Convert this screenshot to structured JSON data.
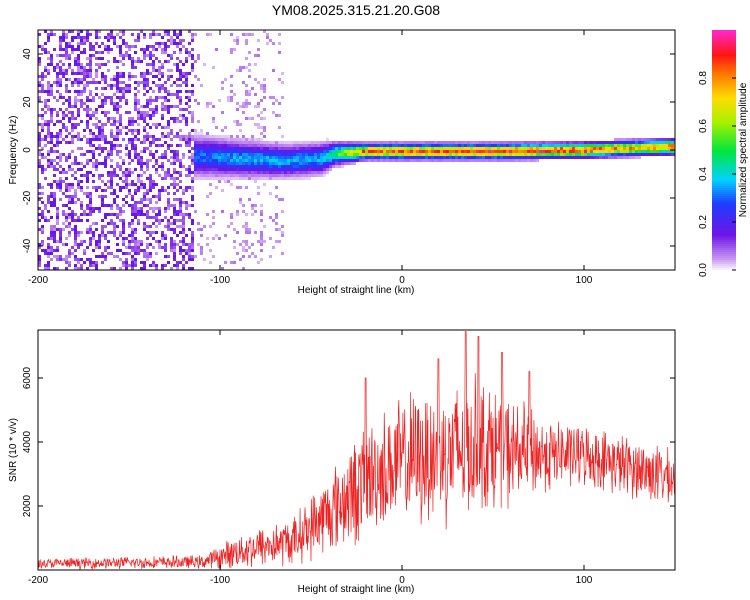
{
  "title": "YM08.2025.315.21.20.G08",
  "colors": {
    "snr_line": "#ee2222",
    "ridge": "#ff2a2a"
  },
  "chart_data": [
    {
      "type": "heatmap",
      "name": "spectrogram",
      "xlabel": "Height of straight line (km)",
      "ylabel": "Frequency (Hz)",
      "xlim": [
        -200,
        150
      ],
      "ylim": [
        -50,
        50
      ],
      "x_ticks": [
        -200,
        -100,
        0,
        100
      ],
      "y_ticks": [
        -40,
        -20,
        0,
        20,
        40
      ],
      "noise_region_x": [
        -200,
        -115
      ],
      "sparse_region_x": [
        -115,
        -65
      ],
      "signal_band": [
        {
          "x": -115,
          "freq": -2,
          "width": 10,
          "amp": 0.35
        },
        {
          "x": -90,
          "freq": -3,
          "width": 9,
          "amp": 0.4
        },
        {
          "x": -65,
          "freq": -4,
          "width": 8,
          "amp": 0.42
        },
        {
          "x": -45,
          "freq": -3,
          "width": 8,
          "amp": 0.4
        },
        {
          "x": -38,
          "freq": -1,
          "width": 6,
          "amp": 0.55
        },
        {
          "x": -20,
          "freq": 0,
          "width": 4,
          "amp": 0.95
        },
        {
          "x": 0,
          "freq": 0,
          "width": 4,
          "amp": 1.0
        },
        {
          "x": 50,
          "freq": 0,
          "width": 4,
          "amp": 1.0
        },
        {
          "x": 100,
          "freq": 0.5,
          "width": 4,
          "amp": 1.0
        },
        {
          "x": 130,
          "freq": 1.5,
          "width": 4,
          "amp": 0.85
        },
        {
          "x": 150,
          "freq": 2,
          "width": 4,
          "amp": 0.95
        }
      ],
      "colorbar": {
        "label": "Normalized spectral amplitude",
        "range": [
          0,
          1
        ],
        "ticks": [
          0.0,
          0.2,
          0.4,
          0.6,
          0.8
        ]
      }
    },
    {
      "type": "line",
      "name": "snr",
      "xlabel": "Height of straight line (km)",
      "ylabel": "SNR (10 * v/v)",
      "xlim": [
        -200,
        150
      ],
      "ylim": [
        0,
        7500
      ],
      "x_ticks": [
        -200,
        -100,
        0,
        100
      ],
      "y_ticks": [
        2000,
        4000,
        6000
      ],
      "envelope": [
        {
          "x": -200,
          "mean": 200,
          "spread": 150
        },
        {
          "x": -110,
          "mean": 250,
          "spread": 200
        },
        {
          "x": -100,
          "mean": 400,
          "spread": 350
        },
        {
          "x": -90,
          "mean": 600,
          "spread": 500
        },
        {
          "x": -80,
          "mean": 700,
          "spread": 600
        },
        {
          "x": -60,
          "mean": 900,
          "spread": 700
        },
        {
          "x": -40,
          "mean": 1800,
          "spread": 1200
        },
        {
          "x": -25,
          "mean": 2500,
          "spread": 1600
        },
        {
          "x": -15,
          "mean": 3000,
          "spread": 1700
        },
        {
          "x": 0,
          "mean": 3400,
          "spread": 1900
        },
        {
          "x": 20,
          "mean": 3600,
          "spread": 2100
        },
        {
          "x": 40,
          "mean": 3900,
          "spread": 2100
        },
        {
          "x": 60,
          "mean": 3700,
          "spread": 1600
        },
        {
          "x": 80,
          "mean": 3600,
          "spread": 1100
        },
        {
          "x": 100,
          "mean": 3600,
          "spread": 900
        },
        {
          "x": 120,
          "mean": 3300,
          "spread": 900
        },
        {
          "x": 140,
          "mean": 3000,
          "spread": 900
        },
        {
          "x": 150,
          "mean": 2800,
          "spread": 800
        }
      ],
      "spikes": [
        {
          "x": -20,
          "y": 6000
        },
        {
          "x": 20,
          "y": 6600
        },
        {
          "x": 35,
          "y": 7450
        },
        {
          "x": 42,
          "y": 7300
        },
        {
          "x": 55,
          "y": 6800
        },
        {
          "x": 70,
          "y": 6200
        }
      ]
    }
  ]
}
